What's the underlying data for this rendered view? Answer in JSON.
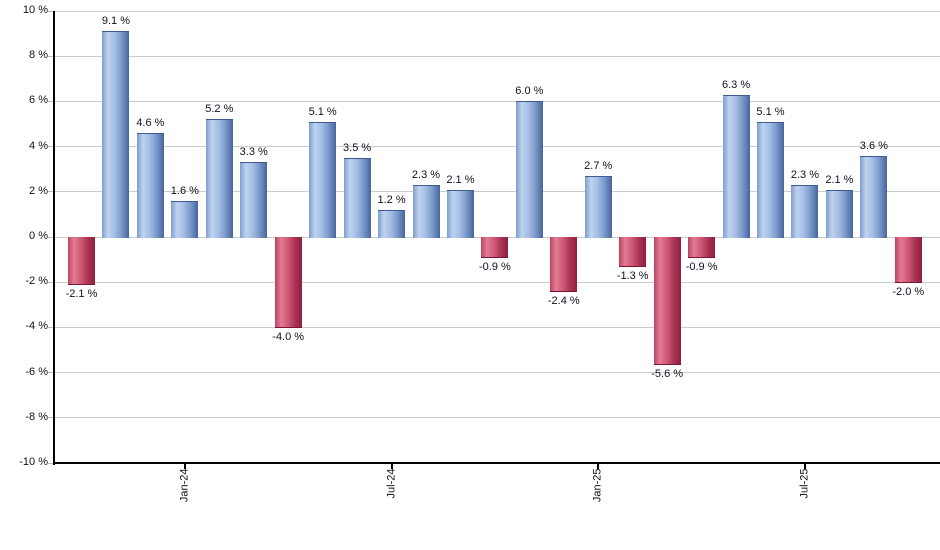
{
  "chart_data": {
    "type": "bar",
    "title": "",
    "xlabel": "",
    "ylabel": "",
    "ylim": [
      -10,
      10
    ],
    "ytick_step": 2,
    "grid": true,
    "legend": false,
    "ytick_labels": [
      "10 %",
      "8 %",
      "6 %",
      "4 %",
      "2 %",
      "0 %",
      "-2 %",
      "-4 %",
      "-6 %",
      "-8 %",
      "-10 %"
    ],
    "ytick_values": [
      10,
      8,
      6,
      4,
      2,
      0,
      -2,
      -4,
      -6,
      -8,
      -10
    ],
    "values": [
      -2.1,
      9.1,
      4.6,
      1.6,
      5.2,
      3.3,
      -4.0,
      5.1,
      3.5,
      1.2,
      2.3,
      2.1,
      -0.9,
      6.0,
      -2.4,
      2.7,
      -1.3,
      -5.6,
      -0.9,
      6.3,
      5.1,
      2.3,
      2.1,
      3.6,
      -2.0
    ],
    "bar_labels": [
      "-2.1 %",
      "9.1 %",
      "4.6 %",
      "1.6 %",
      "5.2 %",
      "3.3 %",
      "-4.0 %",
      "5.1 %",
      "3.5 %",
      "1.2 %",
      "2.3 %",
      "2.1 %",
      "-0.9 %",
      "6.0 %",
      "-2.4 %",
      "2.7 %",
      "-1.3 %",
      "-5.6 %",
      "-0.9 %",
      "6.3 %",
      "5.1 %",
      "2.3 %",
      "2.1 %",
      "3.6 %",
      "-2.0 %"
    ],
    "x_ticks": [
      {
        "bar_index": 3,
        "label": "Jan-24"
      },
      {
        "bar_index": 9,
        "label": "Jul-24"
      },
      {
        "bar_index": 15,
        "label": "Jan-25"
      },
      {
        "bar_index": 21,
        "label": "Jul-25"
      }
    ],
    "colors": {
      "positive_bar": "#86a8d8",
      "positive_bar_light": "#bed3ee",
      "positive_bar_dark": "#47659c",
      "negative_bar": "#cc5674",
      "negative_bar_light": "#e37b92",
      "negative_bar_dark": "#8f1f3e",
      "gridline": "#cccccc",
      "axis": "#000000",
      "label_text": "#10101f"
    }
  }
}
